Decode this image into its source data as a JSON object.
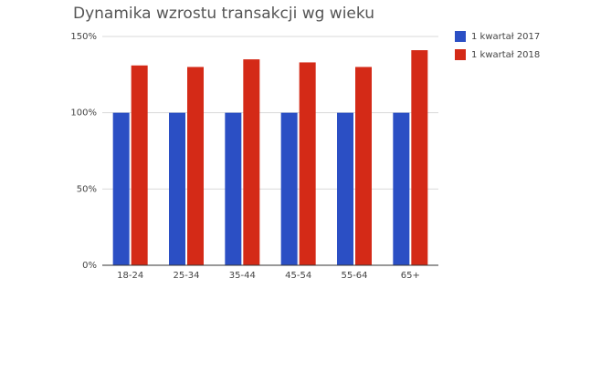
{
  "chart_data": {
    "type": "bar",
    "title": "Dynamika wzrostu transakcji wg wieku",
    "categories": [
      "18-24",
      "25-34",
      "35-44",
      "45-54",
      "55-64",
      "65+"
    ],
    "series": [
      {
        "name": "1 kwartał 2017",
        "color": "#2b4fc4",
        "values": [
          100,
          100,
          100,
          100,
          100,
          100
        ]
      },
      {
        "name": "1 kwartał 2018",
        "color": "#d42a17",
        "values": [
          131,
          130,
          135,
          133,
          130,
          141
        ]
      }
    ],
    "ylim": [
      0,
      150
    ],
    "yticks": [
      {
        "value": 0,
        "label": "0%"
      },
      {
        "value": 50,
        "label": "50%"
      },
      {
        "value": 100,
        "label": "100%"
      },
      {
        "value": 150,
        "label": "150%"
      }
    ],
    "grid": true,
    "legend": "right"
  }
}
